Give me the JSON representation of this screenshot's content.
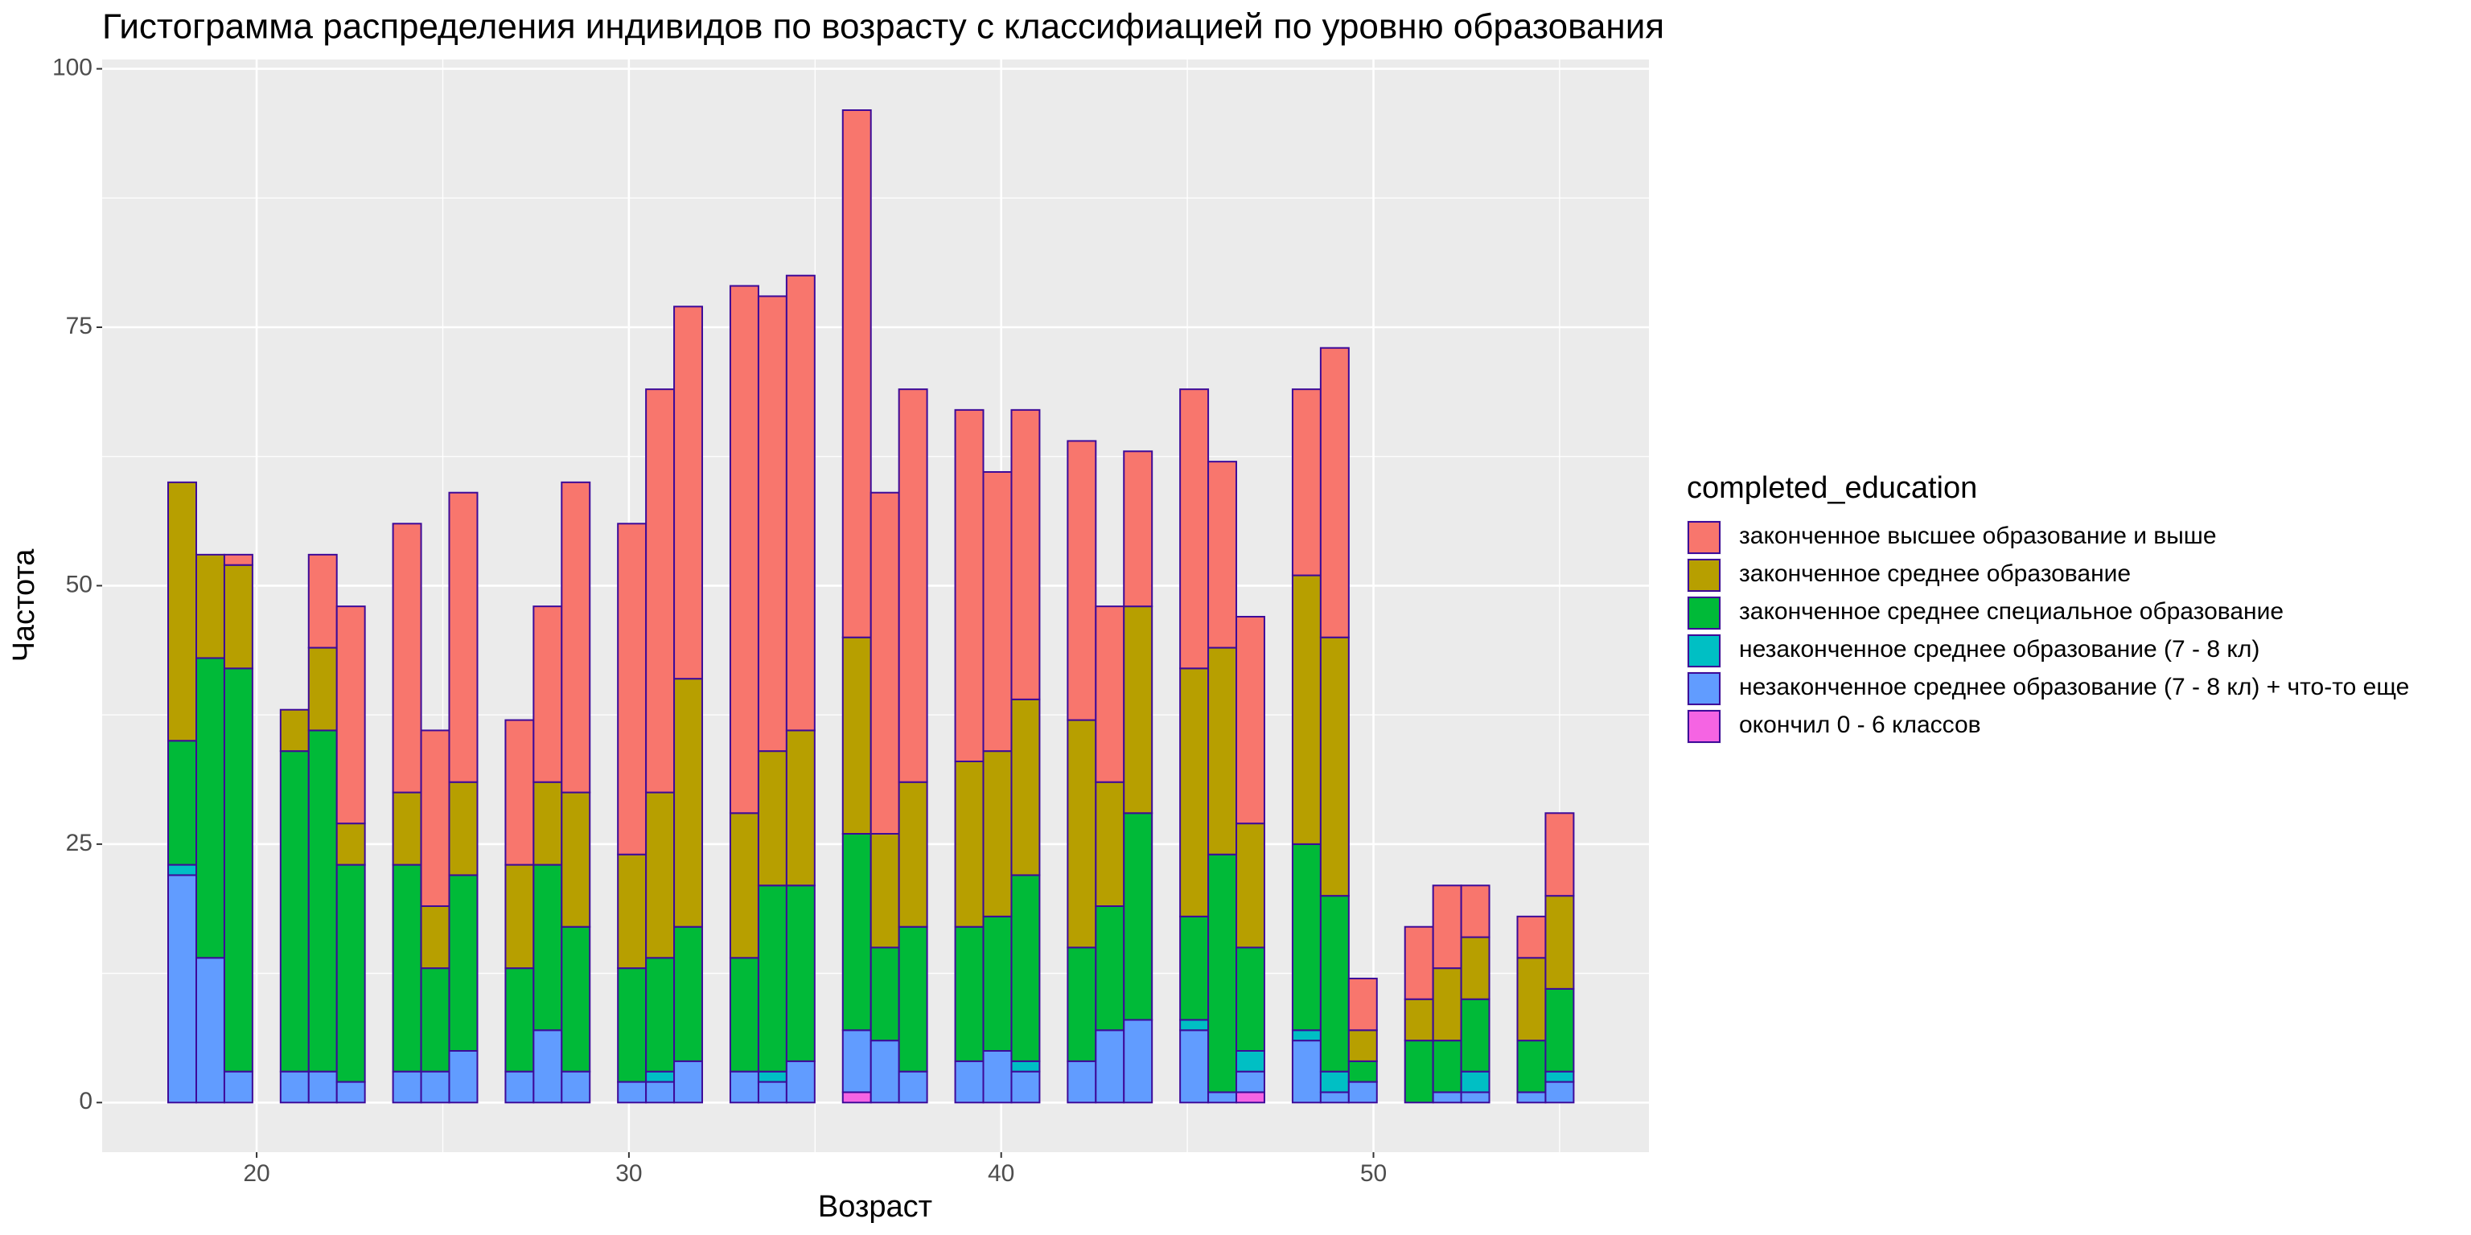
{
  "chart_data": {
    "type": "histogram",
    "title": "Гистограмма распределения индивидов по возрасту с классифиацией по уровню образования",
    "x_label": "Возраст",
    "y_label": "Частота",
    "legend_title": "completed_education",
    "legend_position": "right",
    "stacked": true,
    "grid": true,
    "edgecolor": "#3d0a99",
    "bins": [
      17.622,
      18.378,
      19.133,
      19.888,
      20.643,
      21.398,
      22.153,
      22.908,
      23.663,
      24.418,
      25.173,
      25.929,
      26.684,
      27.439,
      28.194,
      28.949,
      29.704,
      30.459,
      31.214,
      31.969,
      32.724,
      33.48,
      34.235,
      34.99,
      35.745,
      36.5,
      37.255,
      38.01,
      38.765,
      39.52,
      40.276,
      41.031,
      41.786,
      42.541,
      43.296,
      44.051,
      44.806,
      45.561,
      46.316,
      47.071,
      47.827,
      48.582,
      49.337,
      50.092,
      50.847,
      51.602,
      52.357,
      53.112,
      53.867,
      54.622,
      55.378
    ],
    "series": [
      {
        "name": "законченное высшее образование и выше",
        "color": "#F8766D",
        "values": [
          0,
          0,
          1,
          0,
          0,
          9,
          21,
          0,
          26,
          17,
          28,
          0,
          14,
          17,
          30,
          0,
          32,
          39,
          36,
          0,
          51,
          44,
          44,
          0,
          51,
          33,
          38,
          0,
          34,
          27,
          28,
          0,
          27,
          17,
          15,
          0,
          27,
          18,
          20,
          0,
          18,
          28,
          5,
          0,
          7,
          8,
          5,
          0,
          4,
          8
        ]
      },
      {
        "name": "законченное среднее образование",
        "color": "#B79F00",
        "values": [
          25,
          10,
          10,
          0,
          4,
          8,
          4,
          0,
          7,
          6,
          9,
          0,
          10,
          8,
          13,
          0,
          11,
          16,
          24,
          0,
          14,
          13,
          15,
          0,
          19,
          11,
          14,
          0,
          16,
          16,
          17,
          0,
          22,
          12,
          20,
          0,
          24,
          20,
          12,
          0,
          26,
          25,
          3,
          0,
          4,
          7,
          6,
          0,
          8,
          9
        ]
      },
      {
        "name": "законченное среднее специальное образование",
        "color": "#00BA38",
        "values": [
          12,
          29,
          39,
          0,
          31,
          33,
          21,
          0,
          20,
          10,
          17,
          0,
          10,
          16,
          14,
          0,
          11,
          11,
          13,
          0,
          11,
          18,
          17,
          0,
          19,
          9,
          14,
          0,
          13,
          13,
          18,
          0,
          11,
          12,
          20,
          0,
          10,
          23,
          10,
          0,
          18,
          17,
          2,
          0,
          6,
          5,
          7,
          0,
          5,
          8
        ]
      },
      {
        "name": "незаконченное среднее образование (7 - 8 кл)",
        "color": "#00BFC4",
        "values": [
          1,
          0,
          0,
          0,
          0,
          0,
          0,
          0,
          0,
          0,
          0,
          0,
          0,
          0,
          0,
          0,
          0,
          1,
          0,
          0,
          0,
          1,
          0,
          0,
          0,
          0,
          0,
          0,
          0,
          0,
          1,
          0,
          0,
          0,
          0,
          0,
          1,
          0,
          2,
          0,
          1,
          2,
          0,
          0,
          0,
          0,
          2,
          0,
          0,
          1
        ]
      },
      {
        "name": "незаконченное среднее образование (7 - 8 кл) + что-то еще",
        "color": "#619CFF",
        "values": [
          22,
          14,
          3,
          0,
          3,
          3,
          2,
          0,
          3,
          3,
          5,
          0,
          3,
          7,
          3,
          0,
          2,
          2,
          4,
          0,
          3,
          2,
          4,
          0,
          6,
          6,
          3,
          0,
          4,
          5,
          3,
          0,
          4,
          7,
          8,
          0,
          7,
          1,
          2,
          0,
          6,
          1,
          2,
          0,
          0,
          1,
          1,
          0,
          1,
          2
        ]
      },
      {
        "name": "окончил 0 - 6 классов",
        "color": "#F564E3",
        "values": [
          0,
          0,
          0,
          0,
          0,
          0,
          0,
          0,
          0,
          0,
          0,
          0,
          0,
          0,
          0,
          0,
          0,
          0,
          0,
          0,
          0,
          0,
          0,
          0,
          1,
          0,
          0,
          0,
          0,
          0,
          0,
          0,
          0,
          0,
          0,
          0,
          0,
          0,
          1,
          0,
          0,
          0,
          0,
          0,
          0,
          0,
          0,
          0,
          0,
          0
        ]
      }
    ],
    "xlim": [
      15.85,
      57.4
    ],
    "ylim": [
      -4.8,
      100.9
    ],
    "xticks": [
      20,
      30,
      40,
      50
    ],
    "yticks": [
      0,
      25,
      50,
      75,
      100
    ]
  }
}
